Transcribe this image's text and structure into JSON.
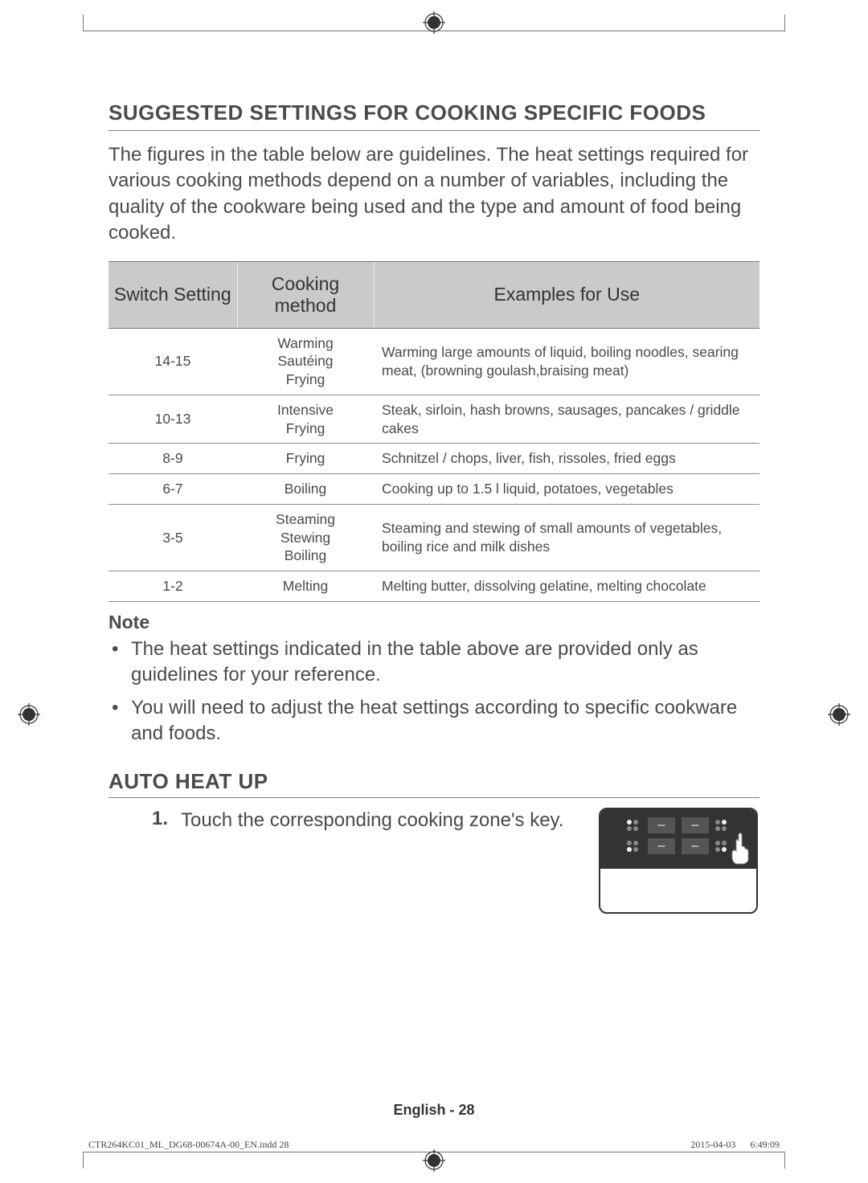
{
  "colors": {
    "text": "#4a4a4a",
    "heading": "#4a4a4a",
    "table_header_bg": "#c9cacc",
    "border": "#808080",
    "panel_bg": "#333333"
  },
  "heading1": "SUGGESTED SETTINGS FOR COOKING SPECIFIC FOODS",
  "intro": "The figures in the table below are guidelines. The heat settings required for various cooking methods depend on a number of variables, including the quality of the cookware being used and the type and amount of food being cooked.",
  "table": {
    "headers": [
      "Switch Setting",
      "Cooking method",
      "Examples for Use"
    ],
    "col_align": [
      "center",
      "center",
      "left"
    ],
    "rows": [
      {
        "setting": "14-15",
        "method": [
          "Warming",
          "Sautéing",
          "Frying"
        ],
        "example": "Warming large amounts of liquid, boiling noodles, searing meat, (browning goulash,braising meat)"
      },
      {
        "setting": "10-13",
        "method": [
          "Intensive",
          "Frying"
        ],
        "example": "Steak, sirloin, hash browns, sausages, pancakes / griddle cakes"
      },
      {
        "setting": "8-9",
        "method": [
          "Frying"
        ],
        "example": "Schnitzel / chops, liver, fish, rissoles, fried eggs"
      },
      {
        "setting": "6-7",
        "method": [
          "Boiling"
        ],
        "example": "Cooking up to 1.5 l liquid, potatoes, vegetables"
      },
      {
        "setting": "3-5",
        "method": [
          "Steaming",
          "Stewing",
          "Boiling"
        ],
        "example": "Steaming and stewing of small amounts of vegetables, boiling rice and milk dishes"
      },
      {
        "setting": "1-2",
        "method": [
          "Melting"
        ],
        "example": "Melting butter, dissolving gelatine, melting chocolate"
      }
    ]
  },
  "note": {
    "heading": "Note",
    "items": [
      "The heat settings indicated in the table above are provided only as guidelines for your reference.",
      "You will need to adjust the heat settings according to specific cookware and foods."
    ]
  },
  "heading2": "AUTO HEAT UP",
  "step": {
    "num": "1.",
    "text": "Touch the corresponding cooking zone's key."
  },
  "footer": {
    "lang": "English - 28",
    "file": "CTR264KC01_ML_DG68-00674A-00_EN.indd   28",
    "date": "2015-04-03     6:49:09"
  }
}
